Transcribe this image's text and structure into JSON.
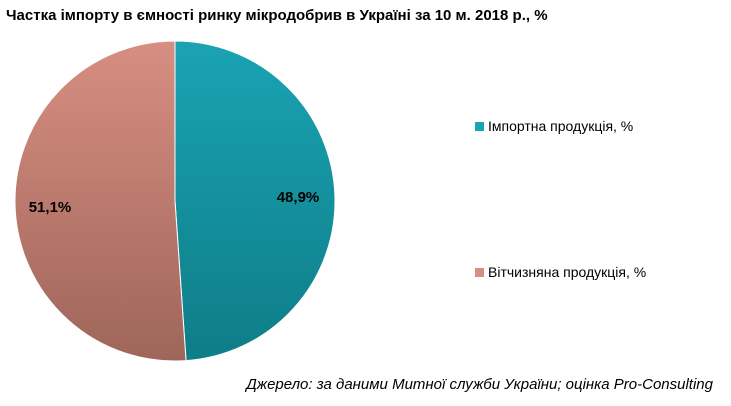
{
  "chart_data": {
    "type": "pie",
    "title": "Частка імпорту в ємності ринку мікродобрив в Україні за 10 м. 2018 р., %",
    "slices": [
      {
        "name": "Імпортна продукція, %",
        "value": 48.9,
        "label": "48,9%",
        "color": "#1aa3b3",
        "color_dark": "#0e7d88"
      },
      {
        "name": "Вітчизняна продукція, %",
        "value": 51.1,
        "label": "51,1%",
        "color": "#d88e82",
        "color_dark": "#9e6659"
      }
    ],
    "legend_position": "right",
    "start_angle_deg": 0,
    "direction": "clockwise"
  },
  "source_note": "Джерело: за даними Митної служби України; оцінка Pro-Consulting"
}
